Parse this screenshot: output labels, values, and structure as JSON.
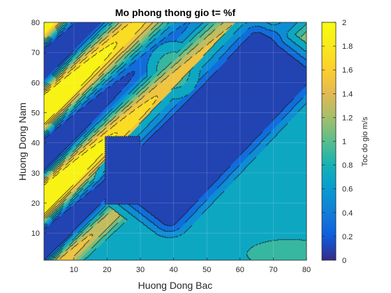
{
  "chart_data": {
    "type": "heatmap",
    "subtype": "filled-contour",
    "title": "Mo phong thong gio t= %f",
    "xlabel": "Huong Dong Bac",
    "ylabel": "Huong Dong Nam",
    "xlim": [
      1,
      80
    ],
    "ylim": [
      1,
      80
    ],
    "xticks": [
      "10",
      "20",
      "30",
      "40",
      "50",
      "60",
      "70",
      "80"
    ],
    "yticks": [
      "10",
      "20",
      "30",
      "40",
      "50",
      "60",
      "70",
      "80"
    ],
    "grid": true,
    "colorbar": {
      "label": "Toc do gio m/s",
      "clim": [
        0,
        2
      ],
      "ticks": [
        "0",
        "0.2",
        "0.4",
        "0.6",
        "0.8",
        "1",
        "1.2",
        "1.4",
        "1.6",
        "1.8",
        "2"
      ],
      "colormap": "parula"
    },
    "levels": [
      0.2,
      0.4,
      0.6,
      0.8,
      1.0,
      1.2,
      1.4,
      1.6,
      1.8
    ],
    "background_value": 0.72,
    "features": [
      {
        "kind": "rotated-box",
        "from": [
          32,
          21
        ],
        "to": [
          72,
          68
        ],
        "halfwidth": 9,
        "value": 0.05
      },
      {
        "kind": "box",
        "x": [
          19.5,
          30
        ],
        "y": [
          19.5,
          42
        ],
        "value": 0.05
      },
      {
        "kind": "blob",
        "center": [
          40,
          64
        ],
        "radius": [
          5,
          6
        ],
        "value": 1.05
      },
      {
        "kind": "blob",
        "center": [
          75,
          3
        ],
        "radius": [
          16,
          6
        ],
        "value": 1.0
      }
    ]
  }
}
